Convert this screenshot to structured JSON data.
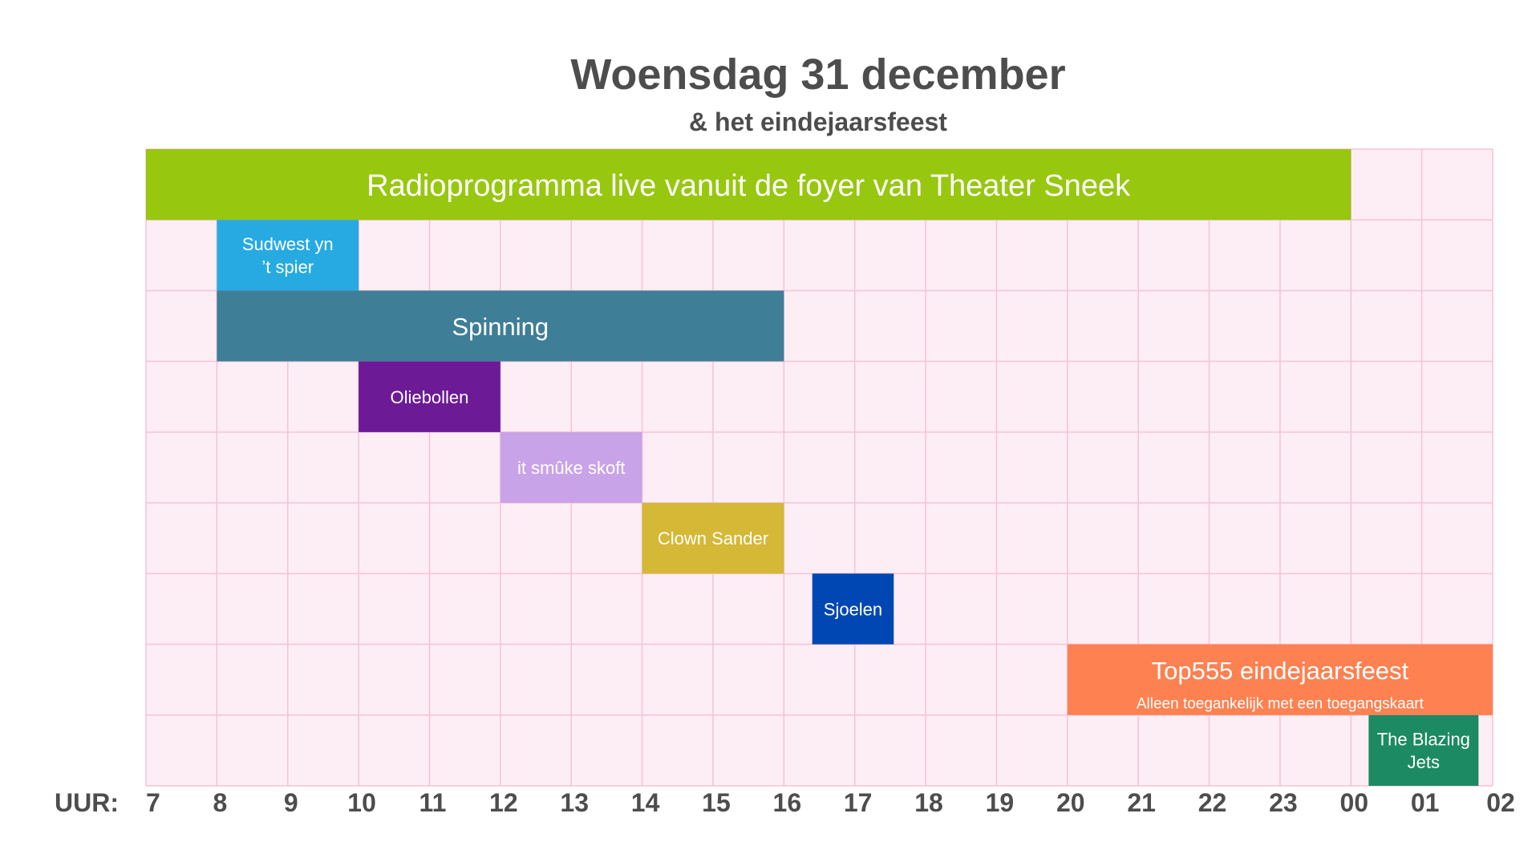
{
  "title": "Woensdag 31 december",
  "subtitle": "& het eindejaarsfeest",
  "chart_data": {
    "type": "gantt",
    "x_axis_label": "UUR:",
    "tick_labels": [
      "7",
      "8",
      "9",
      "10",
      "11",
      "12",
      "13",
      "14",
      "15",
      "16",
      "17",
      "18",
      "19",
      "20",
      "21",
      "22",
      "23",
      "00",
      "01",
      "02"
    ],
    "x_range_hours": [
      7,
      26
    ],
    "grid": true,
    "rows": 9,
    "colors": {
      "background": "#fdeef5",
      "grid": "#f5c2d6"
    },
    "bars": [
      {
        "label": "Radioprogramma live vanuit de foyer van Theater Sneek",
        "sublabel": "",
        "start": 7,
        "end": 24,
        "row": 0,
        "color": "#97c70f"
      },
      {
        "label": "Sudwest yn\n’t spier",
        "sublabel": "",
        "start": 8,
        "end": 10,
        "row": 1,
        "color": "#27aae2"
      },
      {
        "label": "Spinning",
        "sublabel": "",
        "start": 8,
        "end": 16,
        "row": 2,
        "color": "#3f7e97"
      },
      {
        "label": "Oliebollen",
        "sublabel": "",
        "start": 10,
        "end": 12,
        "row": 3,
        "color": "#6c1a96"
      },
      {
        "label": "it smûke skoft",
        "sublabel": "",
        "start": 12,
        "end": 14,
        "row": 4,
        "color": "#c9a3e8"
      },
      {
        "label": "Clown Sander",
        "sublabel": "",
        "start": 14,
        "end": 16,
        "row": 5,
        "color": "#d5b835"
      },
      {
        "label": "Sjoelen",
        "sublabel": "",
        "start": 16.4,
        "end": 17.55,
        "row": 6,
        "color": "#0047b3"
      },
      {
        "label": "Top555 eindejaarsfeest",
        "sublabel": "Alleen toegankelijk met een toegangskaart",
        "start": 20,
        "end": 26,
        "row": 7,
        "color": "#fd8151"
      },
      {
        "label": "The Blazing\nJets",
        "sublabel": "",
        "start": 24.25,
        "end": 25.8,
        "row": 8,
        "color": "#1c8a63"
      }
    ]
  }
}
